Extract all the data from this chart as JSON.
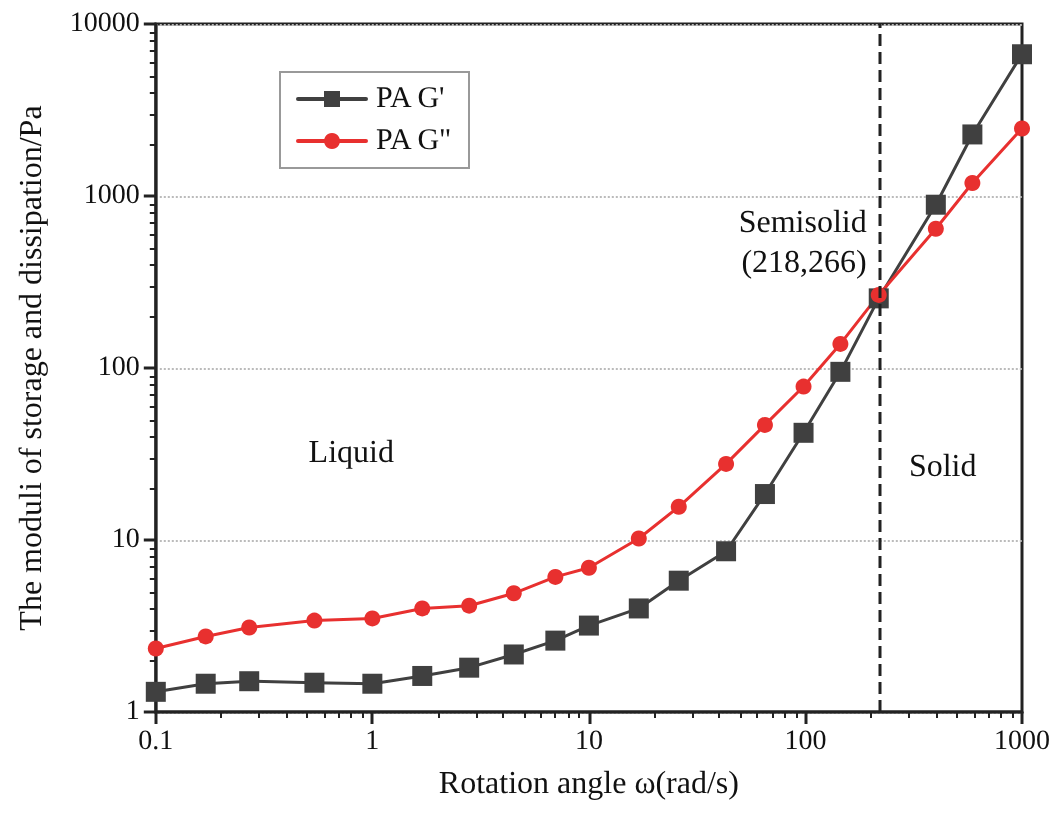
{
  "chart_data": {
    "type": "line",
    "xlabel": "Rotation angle ω(rad/s)",
    "ylabel": "The moduli of storage and dissipation/Pa",
    "x": [
      0.1,
      0.17,
      0.27,
      0.54,
      1,
      1.7,
      2.8,
      4.5,
      7,
      10,
      17,
      26,
      43,
      65,
      98,
      145,
      218,
      400,
      590,
      1000
    ],
    "series": [
      {
        "name": "PA G'",
        "color": "#404040",
        "marker": "square",
        "values": [
          1.31,
          1.46,
          1.51,
          1.48,
          1.46,
          1.62,
          1.81,
          2.16,
          2.6,
          3.18,
          4.0,
          5.8,
          8.6,
          18.5,
          42,
          95,
          254,
          890,
          2280,
          6670
        ]
      },
      {
        "name": "PA G\"",
        "color": "#e8302f",
        "marker": "circle",
        "values": [
          2.34,
          2.75,
          3.1,
          3.4,
          3.5,
          4.0,
          4.15,
          4.9,
          6.1,
          6.9,
          10.2,
          15.6,
          27.7,
          46.7,
          78,
          138,
          266,
          645,
          1190,
          2470
        ]
      }
    ],
    "log": "xy",
    "xlim": [
      0.1,
      1000
    ],
    "xticks": [
      0.1,
      1,
      10,
      100,
      1000
    ],
    "ylim": [
      1,
      10000
    ],
    "yticks": [
      1,
      10,
      100,
      1000,
      10000
    ],
    "grid": "y",
    "legend": "top left",
    "line_style": "solid",
    "ref_lines": [
      {
        "axis": "x",
        "value": 218,
        "label": null,
        "color": "#222222",
        "line_style": "dashed"
      }
    ],
    "annotations": [
      {
        "text": "Semisolid\n(218,266)",
        "x": 218,
        "y": 266
      },
      "Liquid",
      "Solid"
    ]
  }
}
